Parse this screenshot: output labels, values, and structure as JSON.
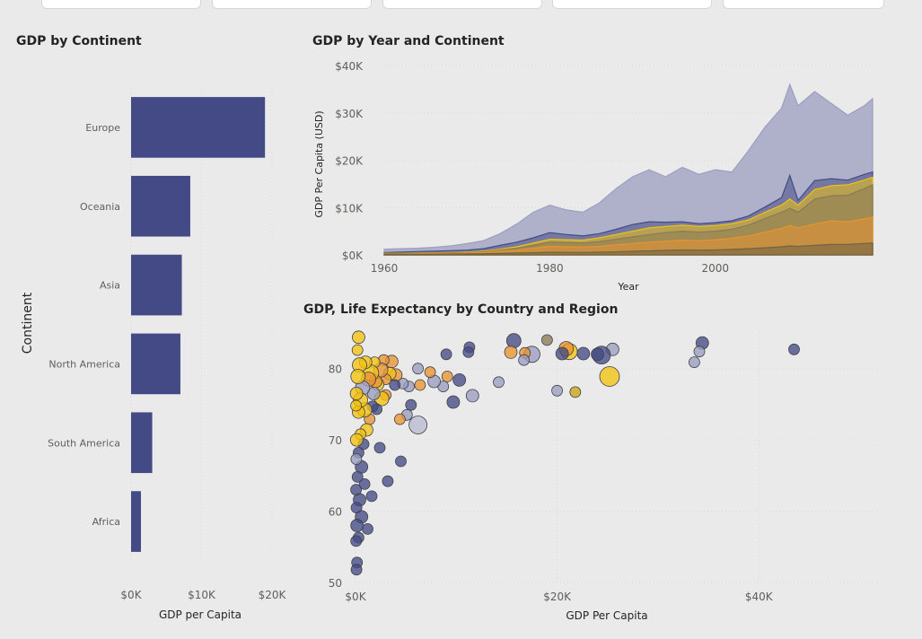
{
  "filter_tiles": [
    {
      "label": ""
    },
    {
      "label": ""
    },
    {
      "label": ""
    },
    {
      "label": ""
    },
    {
      "label": ""
    }
  ],
  "colors": {
    "navy": "#444a85",
    "lavender": "#9b9ec0",
    "orange": "#e89331",
    "yellow": "#f2c20f",
    "brown": "#8a7a55",
    "olive": "#6e6545"
  },
  "chart_data": [
    {
      "id": "bar",
      "type": "bar",
      "orientation": "horizontal",
      "title": "GDP by Continent",
      "xlabel": "GDP per Capita",
      "ylabel": "Continent",
      "xlim": [
        0,
        20000
      ],
      "xticks": [
        {
          "value": 0,
          "label": "$0K"
        },
        {
          "value": 10000,
          "label": "$10K"
        },
        {
          "value": 20000,
          "label": "$20K"
        }
      ],
      "categories": [
        "Europe",
        "Oceania",
        "Asia",
        "North America",
        "South America",
        "Africa"
      ],
      "values": [
        19000,
        8400,
        7200,
        7000,
        3000,
        1400
      ],
      "color": "#444a85"
    },
    {
      "id": "area",
      "type": "area",
      "title": "GDP by Year and Continent",
      "xlabel": "Year",
      "ylabel": "GDP Per Capita (USD)",
      "xlim": [
        1960,
        2019
      ],
      "ylim": [
        0,
        40000
      ],
      "xticks": [
        {
          "value": 1960,
          "label": "1960"
        },
        {
          "value": 1980,
          "label": "1980"
        },
        {
          "value": 2000,
          "label": "2000"
        }
      ],
      "yticks": [
        {
          "value": 0,
          "label": "$0K"
        },
        {
          "value": 10000,
          "label": "$10K"
        },
        {
          "value": 20000,
          "label": "$20K"
        },
        {
          "value": 30000,
          "label": "$30K"
        },
        {
          "value": 40000,
          "label": "$40K"
        }
      ],
      "x": [
        1960,
        1962,
        1964,
        1966,
        1968,
        1970,
        1972,
        1974,
        1976,
        1978,
        1980,
        1982,
        1984,
        1986,
        1988,
        1990,
        1992,
        1994,
        1996,
        1998,
        2000,
        2002,
        2004,
        2006,
        2008,
        2009,
        2010,
        2012,
        2014,
        2016,
        2018,
        2019
      ],
      "series": [
        {
          "color": "#9b9ec0",
          "values": [
            1200,
            1300,
            1400,
            1600,
            1900,
            2400,
            3000,
            4500,
            6500,
            9000,
            10500,
            9500,
            9000,
            11000,
            14000,
            16500,
            18000,
            16500,
            18500,
            17000,
            18000,
            17500,
            22000,
            27000,
            31000,
            36000,
            31500,
            34500,
            32000,
            29500,
            31500,
            33000
          ]
        },
        {
          "color": "#444a85",
          "values": [
            500,
            600,
            700,
            800,
            900,
            1000,
            1300,
            2000,
            2700,
            3600,
            4700,
            4300,
            4000,
            4500,
            5400,
            6400,
            7000,
            6900,
            7000,
            6600,
            6800,
            7200,
            8200,
            10100,
            12100,
            16800,
            11500,
            15700,
            16100,
            15800,
            17000,
            17500
          ]
        },
        {
          "color": "#f2c20f",
          "values": [
            300,
            350,
            400,
            450,
            500,
            600,
            800,
            1200,
            1700,
            2500,
            3300,
            3200,
            3100,
            3600,
            4300,
            5000,
            5700,
            6000,
            6300,
            6000,
            6200,
            6600,
            7400,
            9000,
            10500,
            11800,
            10500,
            13800,
            14600,
            14800,
            15800,
            16400
          ]
        },
        {
          "color": "#8a7a55",
          "values": [
            250,
            300,
            350,
            400,
            450,
            500,
            650,
            1000,
            1400,
            2000,
            2700,
            2600,
            2500,
            2800,
            3300,
            3800,
            4300,
            4700,
            5000,
            4800,
            5000,
            5400,
            6300,
            7700,
            9000,
            9800,
            9000,
            11800,
            12500,
            12600,
            14000,
            14800
          ]
        },
        {
          "color": "#e89331",
          "values": [
            150,
            200,
            250,
            300,
            350,
            400,
            500,
            750,
            1000,
            1400,
            1800,
            1700,
            1650,
            1800,
            2100,
            2400,
            2700,
            2900,
            3100,
            3000,
            3200,
            3500,
            4000,
            4800,
            5600,
            6200,
            5700,
            6500,
            7200,
            7000,
            7600,
            8000
          ]
        },
        {
          "color": "#6e6545",
          "values": [
            100,
            120,
            140,
            160,
            180,
            200,
            240,
            300,
            380,
            460,
            550,
            540,
            520,
            560,
            650,
            750,
            850,
            950,
            1050,
            1000,
            1050,
            1150,
            1300,
            1500,
            1700,
            1900,
            1800,
            2000,
            2200,
            2200,
            2400,
            2500
          ]
        }
      ]
    },
    {
      "id": "scatter",
      "type": "scatter",
      "title": "GDP, Life Expectancy by Country and Region",
      "xlabel": "GDP Per Capita",
      "ylabel": "",
      "xlim": [
        0,
        52000
      ],
      "ylim": [
        50,
        85
      ],
      "xticks": [
        {
          "value": 0,
          "label": "$0K"
        },
        {
          "value": 20000,
          "label": "$20K"
        },
        {
          "value": 40000,
          "label": "$40K"
        }
      ],
      "yticks": [
        {
          "value": 50,
          "label": "50"
        },
        {
          "value": 60,
          "label": "60"
        },
        {
          "value": 70,
          "label": "70"
        },
        {
          "value": 80,
          "label": "80"
        }
      ],
      "points": [
        {
          "x": 43500,
          "y": 82.7,
          "r": 6,
          "color": "#444a85"
        },
        {
          "x": 34400,
          "y": 83.6,
          "r": 7,
          "color": "#444a85"
        },
        {
          "x": 34100,
          "y": 82.4,
          "r": 6,
          "color": "#9b9ec0"
        },
        {
          "x": 33600,
          "y": 80.9,
          "r": 6,
          "color": "#9b9ec0"
        },
        {
          "x": 25500,
          "y": 82.7,
          "r": 7,
          "color": "#9b9ec0"
        },
        {
          "x": 25200,
          "y": 78.9,
          "r": 11,
          "color": "#f2c20f"
        },
        {
          "x": 24400,
          "y": 81.9,
          "r": 10,
          "color": "#444a85"
        },
        {
          "x": 24000,
          "y": 82.0,
          "r": 7,
          "color": "#444a85"
        },
        {
          "x": 22600,
          "y": 82.1,
          "r": 7,
          "color": "#444a85"
        },
        {
          "x": 21800,
          "y": 76.7,
          "r": 6,
          "color": "#c9a413"
        },
        {
          "x": 21200,
          "y": 82.4,
          "r": 9,
          "color": "#f2c20f"
        },
        {
          "x": 20900,
          "y": 82.8,
          "r": 8,
          "color": "#e89331"
        },
        {
          "x": 20500,
          "y": 82.1,
          "r": 7,
          "color": "#444a85"
        },
        {
          "x": 20000,
          "y": 76.9,
          "r": 6,
          "color": "#9b9ec0"
        },
        {
          "x": 19000,
          "y": 84.0,
          "r": 6,
          "color": "#8a7a55"
        },
        {
          "x": 17500,
          "y": 82.0,
          "r": 9,
          "color": "#9b9ec0"
        },
        {
          "x": 16800,
          "y": 82.2,
          "r": 6,
          "color": "#e89331"
        },
        {
          "x": 16700,
          "y": 81.2,
          "r": 6,
          "color": "#9b9ec0"
        },
        {
          "x": 15700,
          "y": 83.9,
          "r": 8,
          "color": "#444a85"
        },
        {
          "x": 15400,
          "y": 82.3,
          "r": 7,
          "color": "#e89331"
        },
        {
          "x": 14200,
          "y": 78.1,
          "r": 6,
          "color": "#9b9ec0"
        },
        {
          "x": 11300,
          "y": 83.0,
          "r": 6,
          "color": "#444a85"
        },
        {
          "x": 11200,
          "y": 82.3,
          "r": 6,
          "color": "#444a85"
        },
        {
          "x": 11600,
          "y": 76.2,
          "r": 7,
          "color": "#9b9ec0"
        },
        {
          "x": 10300,
          "y": 78.4,
          "r": 7,
          "color": "#444a85"
        },
        {
          "x": 9700,
          "y": 75.3,
          "r": 7,
          "color": "#444a85"
        },
        {
          "x": 9000,
          "y": 82.0,
          "r": 6,
          "color": "#444a85"
        },
        {
          "x": 9100,
          "y": 78.9,
          "r": 6,
          "color": "#e89331"
        },
        {
          "x": 8700,
          "y": 77.5,
          "r": 6,
          "color": "#9b9ec0"
        },
        {
          "x": 7800,
          "y": 78.2,
          "r": 7,
          "color": "#9b9ec0"
        },
        {
          "x": 7400,
          "y": 79.5,
          "r": 6,
          "color": "#e89331"
        },
        {
          "x": 6200,
          "y": 80.0,
          "r": 6,
          "color": "#9b9ec0"
        },
        {
          "x": 6400,
          "y": 77.7,
          "r": 6,
          "color": "#e89331"
        },
        {
          "x": 6200,
          "y": 72.1,
          "r": 10,
          "color": "#b9bbd2"
        },
        {
          "x": 5500,
          "y": 74.9,
          "r": 6,
          "color": "#444a85"
        },
        {
          "x": 5300,
          "y": 77.5,
          "r": 6,
          "color": "#9b9ec0"
        },
        {
          "x": 5100,
          "y": 73.5,
          "r": 6,
          "color": "#9b9ec0"
        },
        {
          "x": 4700,
          "y": 77.9,
          "r": 6,
          "color": "#9b9ec0"
        },
        {
          "x": 4500,
          "y": 67.0,
          "r": 6,
          "color": "#444a85"
        },
        {
          "x": 4400,
          "y": 72.9,
          "r": 6,
          "color": "#e89331"
        },
        {
          "x": 4000,
          "y": 79.1,
          "r": 7,
          "color": "#e89331"
        },
        {
          "x": 3900,
          "y": 77.7,
          "r": 6,
          "color": "#444a85"
        },
        {
          "x": 3600,
          "y": 81.0,
          "r": 7,
          "color": "#e89331"
        },
        {
          "x": 3400,
          "y": 79.3,
          "r": 7,
          "color": "#f2c20f"
        },
        {
          "x": 3200,
          "y": 64.2,
          "r": 6,
          "color": "#444a85"
        },
        {
          "x": 3000,
          "y": 78.5,
          "r": 6,
          "color": "#e89331"
        },
        {
          "x": 3000,
          "y": 76.3,
          "r": 6,
          "color": "#e89331"
        },
        {
          "x": 2800,
          "y": 81.2,
          "r": 6,
          "color": "#e89331"
        },
        {
          "x": 2600,
          "y": 75.8,
          "r": 8,
          "color": "#f2c20f"
        },
        {
          "x": 2500,
          "y": 79.8,
          "r": 8,
          "color": "#e89331"
        },
        {
          "x": 2400,
          "y": 68.9,
          "r": 6,
          "color": "#444a85"
        },
        {
          "x": 2200,
          "y": 77.8,
          "r": 7,
          "color": "#f2c20f"
        },
        {
          "x": 2100,
          "y": 74.3,
          "r": 6,
          "color": "#444a85"
        },
        {
          "x": 2000,
          "y": 78.2,
          "r": 7,
          "color": "#e89331"
        },
        {
          "x": 1900,
          "y": 80.9,
          "r": 6,
          "color": "#f2c20f"
        },
        {
          "x": 1800,
          "y": 76.5,
          "r": 7,
          "color": "#9b9ec0"
        },
        {
          "x": 1700,
          "y": 74.7,
          "r": 6,
          "color": "#444a85"
        },
        {
          "x": 1600,
          "y": 62.1,
          "r": 6,
          "color": "#444a85"
        },
        {
          "x": 1500,
          "y": 79.4,
          "r": 9,
          "color": "#f2c20f"
        },
        {
          "x": 1400,
          "y": 72.9,
          "r": 6,
          "color": "#e89331"
        },
        {
          "x": 1300,
          "y": 78.5,
          "r": 8,
          "color": "#e89331"
        },
        {
          "x": 1200,
          "y": 57.5,
          "r": 6,
          "color": "#444a85"
        },
        {
          "x": 1100,
          "y": 71.4,
          "r": 7,
          "color": "#f2c20f"
        },
        {
          "x": 1000,
          "y": 80.9,
          "r": 7,
          "color": "#f2c20f"
        },
        {
          "x": 900,
          "y": 74.2,
          "r": 8,
          "color": "#f2c20f"
        },
        {
          "x": 900,
          "y": 63.8,
          "r": 6,
          "color": "#444a85"
        },
        {
          "x": 800,
          "y": 69.4,
          "r": 6,
          "color": "#444a85"
        },
        {
          "x": 700,
          "y": 77.3,
          "r": 8,
          "color": "#9b9ec0"
        },
        {
          "x": 600,
          "y": 59.2,
          "r": 7,
          "color": "#444a85"
        },
        {
          "x": 600,
          "y": 66.2,
          "r": 7,
          "color": "#444a85"
        },
        {
          "x": 500,
          "y": 75.6,
          "r": 8,
          "color": "#f2c20f"
        },
        {
          "x": 500,
          "y": 70.8,
          "r": 6,
          "color": "#f2c20f"
        },
        {
          "x": 400,
          "y": 61.6,
          "r": 7,
          "color": "#444a85"
        },
        {
          "x": 400,
          "y": 80.5,
          "r": 8,
          "color": "#f2c20f"
        },
        {
          "x": 300,
          "y": 56.3,
          "r": 6,
          "color": "#444a85"
        },
        {
          "x": 300,
          "y": 68.2,
          "r": 6,
          "color": "#444a85"
        },
        {
          "x": 300,
          "y": 73.9,
          "r": 7,
          "color": "#f2c20f"
        },
        {
          "x": 300,
          "y": 84.4,
          "r": 7,
          "color": "#f2c20f"
        },
        {
          "x": 250,
          "y": 78.9,
          "r": 8,
          "color": "#f2c20f"
        },
        {
          "x": 200,
          "y": 64.8,
          "r": 6,
          "color": "#444a85"
        },
        {
          "x": 200,
          "y": 82.6,
          "r": 6,
          "color": "#f2c20f"
        },
        {
          "x": 150,
          "y": 52.8,
          "r": 6,
          "color": "#444a85"
        },
        {
          "x": 150,
          "y": 58.0,
          "r": 7,
          "color": "#444a85"
        },
        {
          "x": 120,
          "y": 70.0,
          "r": 7,
          "color": "#f2c20f"
        },
        {
          "x": 100,
          "y": 60.5,
          "r": 6,
          "color": "#444a85"
        },
        {
          "x": 100,
          "y": 76.5,
          "r": 7,
          "color": "#f2c20f"
        },
        {
          "x": 100,
          "y": 51.8,
          "r": 6,
          "color": "#444a85"
        },
        {
          "x": 80,
          "y": 67.3,
          "r": 6,
          "color": "#9b9ec0"
        },
        {
          "x": 60,
          "y": 55.8,
          "r": 6,
          "color": "#444a85"
        },
        {
          "x": 50,
          "y": 74.8,
          "r": 6,
          "color": "#f2c20f"
        },
        {
          "x": 50,
          "y": 63.0,
          "r": 6,
          "color": "#444a85"
        }
      ]
    }
  ]
}
